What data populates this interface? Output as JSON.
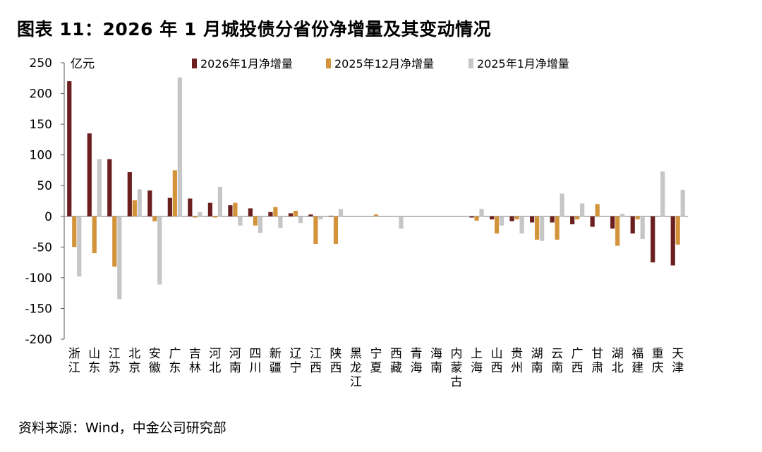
{
  "title": "图表 11：2026 年 1 月城投债分省份净增量及其变动情况",
  "source": "资料来源：Wind，中金公司研究部",
  "chart_data": {
    "type": "bar",
    "unit_label": "亿元",
    "ylim": [
      -200,
      250
    ],
    "yticks": [
      250,
      200,
      150,
      100,
      50,
      0,
      -50,
      -100,
      -150,
      -200
    ],
    "grid": false,
    "legend_position": "top",
    "categories": [
      "浙江",
      "山东",
      "江苏",
      "北京",
      "安徽",
      "广东",
      "吉林",
      "河北",
      "河南",
      "四川",
      "新疆",
      "辽宁",
      "江西",
      "陕西",
      "黑龙江",
      "宁夏",
      "西藏",
      "青海",
      "海南",
      "内蒙古",
      "上海",
      "山西",
      "贵州",
      "湖南",
      "云南",
      "广西",
      "甘肃",
      "湖北",
      "福建",
      "重庆",
      "天津"
    ],
    "series": [
      {
        "name": "2026年1月净增量",
        "color": "#6b1f1f",
        "values": [
          220,
          135,
          93,
          72,
          42,
          30,
          29,
          22,
          18,
          13,
          7,
          5,
          3,
          1,
          0,
          0,
          0,
          0,
          0,
          0,
          -2,
          -5,
          -8,
          -10,
          -10,
          -13,
          -17,
          -20,
          -28,
          -75,
          -80
        ]
      },
      {
        "name": "2025年12月净增量",
        "color": "#d3933a",
        "values": [
          -50,
          -60,
          -82,
          26,
          -8,
          75,
          -2,
          -2,
          22,
          -15,
          15,
          9,
          -45,
          -45,
          0,
          3,
          0,
          0,
          0,
          0,
          -7,
          -28,
          -5,
          -38,
          -38,
          -5,
          20,
          -48,
          -5,
          0,
          -46
        ]
      },
      {
        "name": "2025年1月净增量",
        "color": "#c6c6c6",
        "values": [
          -98,
          93,
          -135,
          44,
          -111,
          226,
          7,
          48,
          -15,
          -27,
          -19,
          -11,
          -5,
          12,
          0,
          0,
          -20,
          0,
          0,
          0,
          12,
          -15,
          -28,
          -40,
          37,
          21,
          0,
          4,
          -37,
          73,
          43
        ]
      }
    ]
  }
}
